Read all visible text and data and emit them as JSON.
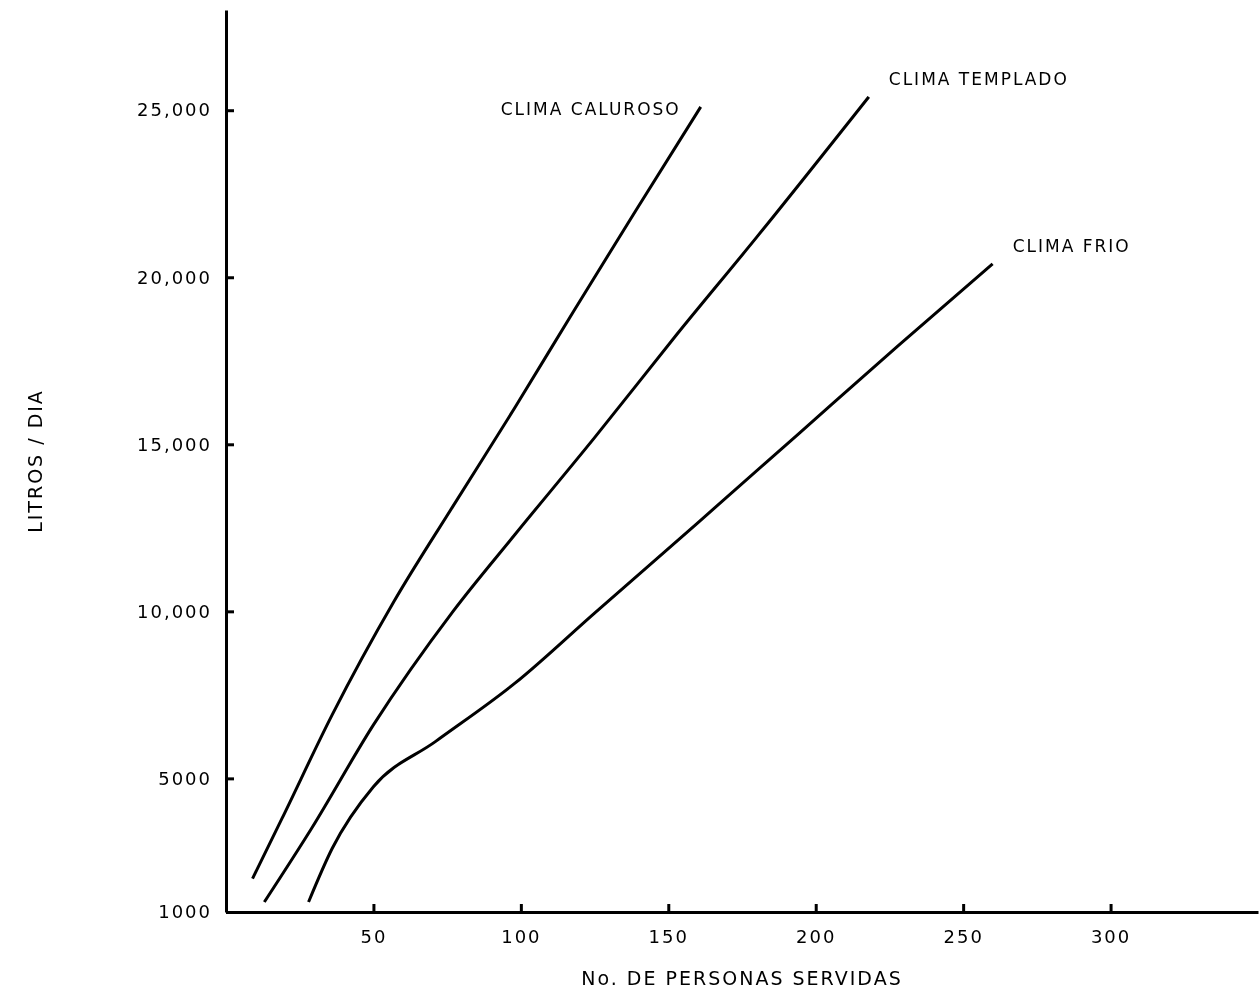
{
  "chart_data": {
    "type": "line",
    "xlabel": "No. DE PERSONAS SERVIDAS",
    "ylabel": "LITROS / DIA",
    "xlim": [
      0,
      350
    ],
    "ylim": [
      1000,
      28000
    ],
    "xticks": [
      50,
      100,
      150,
      200,
      250,
      300
    ],
    "yticks": [
      1000,
      5000,
      {
        "value": 10000,
        "label": "10,000"
      },
      {
        "value": 15000,
        "label": "15,000"
      },
      {
        "value": 20000,
        "label": "20,000"
      },
      {
        "value": 25000,
        "label": "25,000"
      }
    ],
    "grid": false,
    "legend": false,
    "marker": "none",
    "line_style": "solid",
    "series": [
      {
        "name": "CLIMA CALUROSO",
        "color": "#000000",
        "x": [
          9,
          19,
          36,
          57,
          77,
          98,
          118,
          139,
          161
        ],
        "values": [
          2000,
          3800,
          6900,
          10300,
          13150,
          16100,
          19000,
          22000,
          25100
        ]
      },
      {
        "name": "CLIMA TEMPLADO",
        "color": "#000000",
        "x": [
          13,
          29,
          50,
          77,
          98,
          125,
          153,
          180,
          218
        ],
        "values": [
          1300,
          3500,
          6600,
          10000,
          12300,
          15200,
          18300,
          21200,
          25400
        ]
      },
      {
        "name": "CLIMA FRIO",
        "color": "#000000",
        "x": [
          28,
          36,
          50,
          71,
          98,
          125,
          160,
          194,
          228,
          260
        ],
        "values": [
          1300,
          2900,
          4750,
          6100,
          7850,
          9950,
          12650,
          15300,
          17950,
          20400
        ]
      }
    ]
  }
}
